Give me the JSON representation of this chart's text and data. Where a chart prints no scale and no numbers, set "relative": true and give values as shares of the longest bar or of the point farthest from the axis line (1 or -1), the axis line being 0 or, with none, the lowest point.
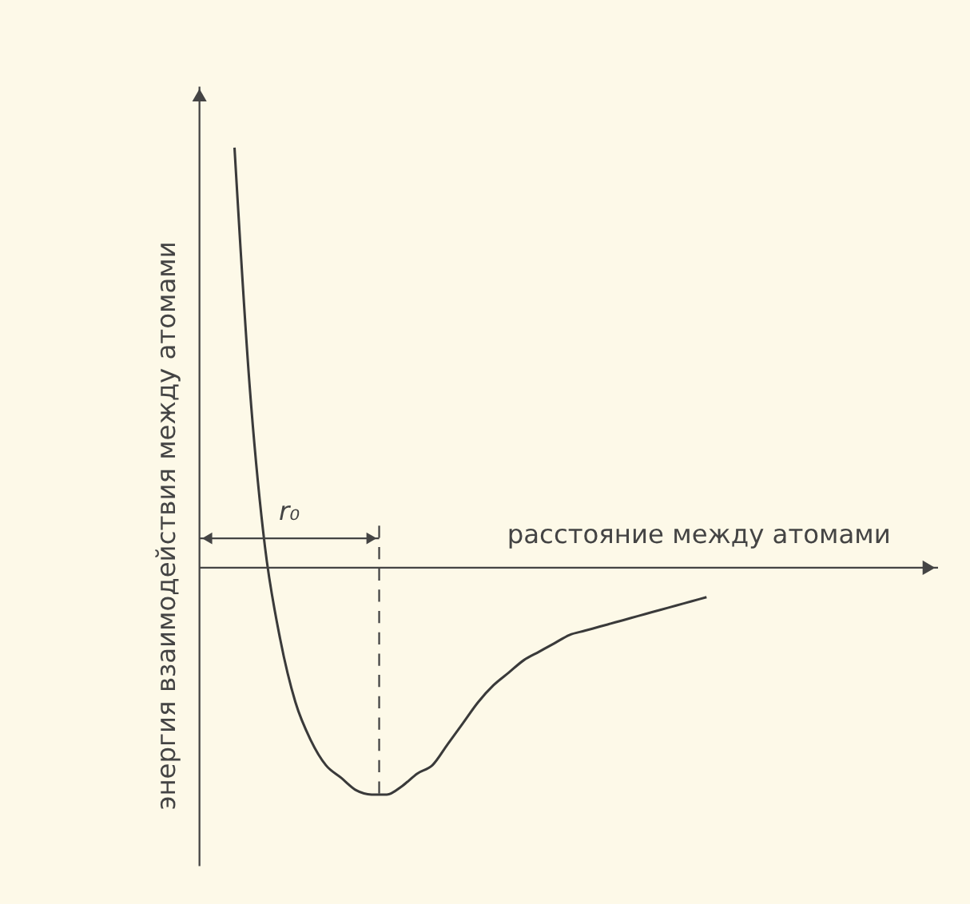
{
  "chart_data": {
    "type": "line",
    "relative": true,
    "categories": [
      null,
      null,
      null,
      null,
      null,
      null,
      null,
      null,
      null,
      null,
      null,
      null,
      null,
      null,
      null,
      null,
      null,
      null,
      null,
      null,
      null,
      null,
      null,
      null,
      null,
      null,
      null,
      null,
      null,
      null,
      null,
      null
    ],
    "values": [
      1,
      0.43,
      0.05,
      -0.17,
      -0.32,
      -0.41,
      -0.47,
      -0.5,
      -0.53,
      -0.54,
      -0.54,
      -0.52,
      -0.49,
      -0.47,
      -0.42,
      -0.37,
      -0.32,
      -0.28,
      -0.25,
      -0.22,
      -0.2,
      -0.18,
      -0.16,
      -0.15,
      -0.14,
      -0.13,
      -0.12,
      -0.11,
      -0.1,
      -0.09,
      -0.08,
      -0.07
    ],
    "color": "#3a3a3a",
    "xlabel": "расстояние между атомами",
    "ylabel": "энергия взаимодействия между атомами",
    "annotations": [
      "r₀"
    ]
  }
}
